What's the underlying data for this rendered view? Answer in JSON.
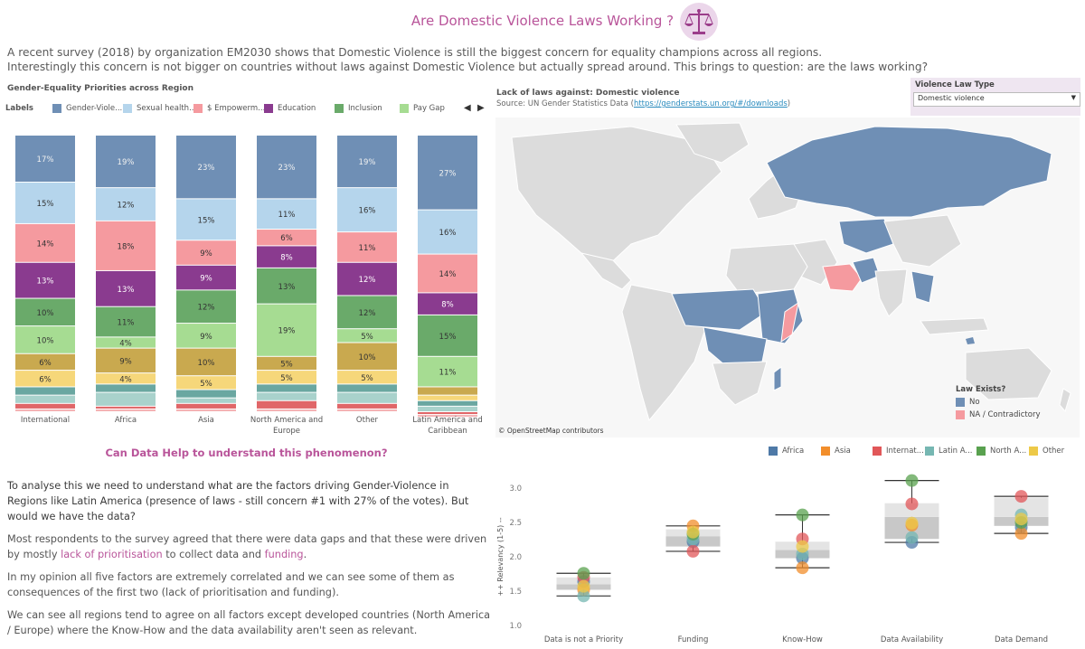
{
  "header": {
    "title": "Are Domestic Violence Laws Working ?",
    "intro_line1": "A recent survey (2018) by organization EM2030 shows that Domestic Violence is still the biggest concern for equality champions across all regions.",
    "intro_line2": "Interestingly this concern is not bigger on countries without laws against Domestic Violence but actually spread around. This brings to question: are the laws working?"
  },
  "bar_section": {
    "title": "Gender-Equality Priorities across Region",
    "legend_label": "Labels",
    "legend": [
      {
        "name": "Gender-Viole...",
        "color": "#6f8fb5"
      },
      {
        "name": "Sexual health...",
        "color": "#b5d5ec"
      },
      {
        "name": "$ Empowerm...",
        "color": "#f59a9f"
      },
      {
        "name": "Education",
        "color": "#8a3b8f"
      },
      {
        "name": "Inclusion",
        "color": "#6aaa6a"
      },
      {
        "name": "Pay Gap",
        "color": "#a6dc92"
      }
    ],
    "arrow_left": "◀",
    "arrow_right": "▶"
  },
  "map_section": {
    "title": "Lack of laws against: Domestic violence",
    "source_prefix": "Source: UN Gender Statistics Data (",
    "source_link": "https://genderstats.un.org/#/downloads",
    "source_suffix": ")",
    "credit": "© OpenStreetMap contributors",
    "filter_label": "Violence Law Type",
    "filter_value": "Domestic violence",
    "legend_title": "Law Exists?",
    "legend": [
      {
        "name": "No",
        "color": "#6f8fb5"
      },
      {
        "name": "NA / Contradictory",
        "color": "#f59a9f"
      }
    ]
  },
  "text_section": {
    "question": "Can Data Help to understand this phenomenon?",
    "p1": "To analyse this we need to understand what are the factors driving Gender-Violence in Regions like Latin America (presence of laws - still concern #1 with 27% of the votes). But would we have the data?",
    "p2_a": "Most respondents to the survey agreed that there were data gaps and that these were driven by mostly ",
    "p2_hl1": "lack of prioritisation",
    "p2_b": " to collect data and ",
    "p2_hl2": "funding",
    "p2_c": ".",
    "p3": "In my opinion all five factors are extremely correlated and we can see some of them as consequences of the first two (lack of prioritisation and funding).",
    "p4": "We can see all regions tend to agree on all factors except developed countries (North America / Europe) where the Know-How and the data availability aren't seen as relevant."
  },
  "chart_data": [
    {
      "type": "bar",
      "stacked": true,
      "title": "Gender-Equality Priorities across Region",
      "categories": [
        "International",
        "Africa",
        "Asia",
        "North America and Europe",
        "Other",
        "Latin America and Caribbean"
      ],
      "segment_colors": [
        "#6f8fb5",
        "#b5d5ec",
        "#f59a9f",
        "#8a3b8f",
        "#6aaa6a",
        "#a6dc92",
        "#c9a94f",
        "#f6d77a",
        "#6aa7a1",
        "#a9d2cc",
        "#e06668",
        "#f4b3b5"
      ],
      "series": [
        {
          "name": "Gender-Viole...",
          "values": [
            17,
            19,
            23,
            23,
            19,
            27
          ]
        },
        {
          "name": "Sexual health...",
          "values": [
            15,
            12,
            15,
            11,
            16,
            16
          ]
        },
        {
          "name": "$ Empowerm...",
          "values": [
            14,
            18,
            9,
            6,
            11,
            14
          ]
        },
        {
          "name": "Education",
          "values": [
            13,
            13,
            9,
            8,
            12,
            8
          ]
        },
        {
          "name": "Inclusion",
          "values": [
            10,
            11,
            12,
            13,
            12,
            15
          ]
        },
        {
          "name": "Pay Gap",
          "values": [
            10,
            4,
            9,
            19,
            5,
            11
          ]
        },
        {
          "values": [
            6,
            9,
            10,
            5,
            10,
            3
          ]
        },
        {
          "values": [
            6,
            4,
            5,
            5,
            5,
            2
          ]
        },
        {
          "values": [
            3,
            3,
            3,
            3,
            3,
            2
          ]
        },
        {
          "values": [
            3,
            5,
            2,
            3,
            4,
            2
          ]
        },
        {
          "values": [
            2,
            1,
            2,
            3,
            2,
            1
          ]
        },
        {
          "values": [
            1,
            1,
            1,
            1,
            1,
            1
          ]
        }
      ],
      "labels_shown_above": 4,
      "grid": false
    },
    {
      "type": "scatter",
      "variant": "box-plot",
      "categories": [
        "Data is not a Priority",
        "Funding",
        "Know-How",
        "Data Availability",
        "Data Demand"
      ],
      "ylabel": "++ Relevancy (1-5) --",
      "ylim": [
        1.0,
        3.0
      ],
      "yticks": [
        "1.0",
        "1.5",
        "2.0",
        "2.5",
        "3.0"
      ],
      "legend_placement": "top",
      "series": [
        {
          "name": "Africa",
          "color": "#4e79a7",
          "values": [
            1.64,
            2.22,
            1.98,
            2.21,
            2.43
          ]
        },
        {
          "name": "Asia",
          "color": "#f28e2b",
          "values": [
            1.52,
            2.45,
            1.84,
            2.46,
            2.34
          ]
        },
        {
          "name": "Internat...",
          "color": "#e15759",
          "values": [
            1.7,
            2.08,
            2.26,
            2.77,
            2.88
          ]
        },
        {
          "name": "Latin A...",
          "color": "#76b7b2",
          "values": [
            1.43,
            2.26,
            2.04,
            2.28,
            2.61
          ]
        },
        {
          "name": "North A...",
          "color": "#59a14f",
          "values": [
            1.76,
            2.33,
            2.61,
            3.11,
            2.5
          ]
        },
        {
          "name": "Other",
          "color": "#edc948",
          "values": [
            1.57,
            2.36,
            2.15,
            2.49,
            2.55
          ]
        }
      ],
      "boxes": [
        {
          "whisker_low": 1.43,
          "q1": 1.52,
          "median": 1.6,
          "q3": 1.7,
          "whisker_high": 1.76
        },
        {
          "whisker_low": 2.08,
          "q1": 2.15,
          "median": 2.3,
          "q3": 2.4,
          "whisker_high": 2.45
        },
        {
          "whisker_low": 1.84,
          "q1": 1.98,
          "median": 2.1,
          "q3": 2.22,
          "whisker_high": 2.61
        },
        {
          "whisker_low": 2.21,
          "q1": 2.26,
          "median": 2.58,
          "q3": 2.78,
          "whisker_high": 3.11
        },
        {
          "whisker_low": 2.34,
          "q1": 2.45,
          "median": 2.58,
          "q3": 2.86,
          "whisker_high": 2.88
        }
      ]
    }
  ]
}
